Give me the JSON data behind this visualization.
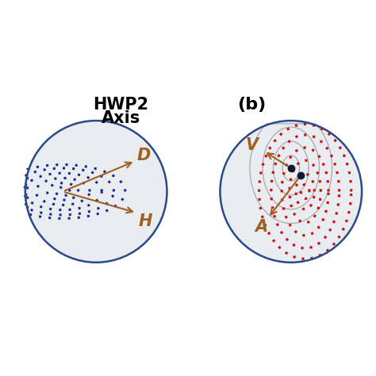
{
  "title_a_line1": "HWP2",
  "title_a_line2": "Axis",
  "title_b": "(b)",
  "label_D": "D",
  "label_H": "H",
  "label_V": "V",
  "label_A": "A",
  "circle_color": "#2a4a8a",
  "circle_linewidth": 1.8,
  "bg_color": "#e9ecf1",
  "dotted_color_a": "#1a2a8b",
  "dotted_color_b": "#cc1111",
  "arrow_color": "#a06020",
  "dot_marker_color": "#0d1a33",
  "gray_curve_color": "#999999",
  "fig_bg": "#ffffff",
  "font_size_label": 15,
  "font_size_title_a": 15,
  "font_size_title_b": 16
}
